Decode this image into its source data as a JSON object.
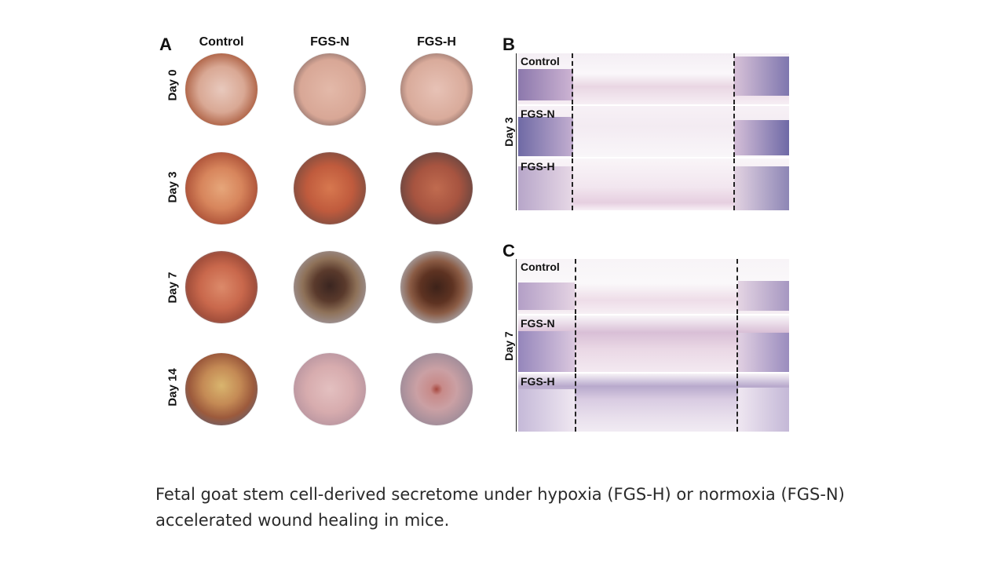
{
  "panels": {
    "a": "A",
    "b": "B",
    "c": "C"
  },
  "columns": [
    "Control",
    "FGS-N",
    "FGS-H"
  ],
  "days": [
    "Day 0",
    "Day 3",
    "Day 7",
    "Day 14"
  ],
  "b_row_label": "Day 3",
  "c_row_label": "Day 7",
  "histo_groups": [
    "Control",
    "FGS-N",
    "FGS-H"
  ],
  "caption": "Fetal goat stem cell-derived secretome under hypoxia (FGS-H) or normoxia (FGS-N) accelerated wound healing in mice."
}
